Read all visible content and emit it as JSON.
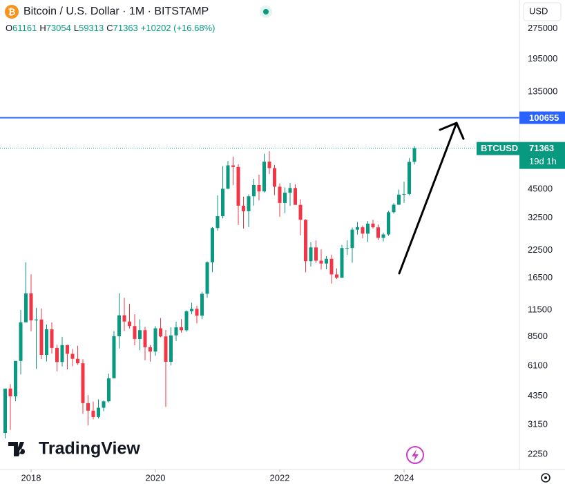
{
  "chart_data": {
    "type": "candlestick",
    "title": "Bitcoin / U.S. Dollar · 1M · BITSTAMP",
    "ohlc_prefixes": [
      "O",
      "H",
      "L",
      "C"
    ],
    "change_text": "+10202 (+16.68%)",
    "currency": "USD",
    "symbol": "BTCUSD",
    "countdown": "19d 1h",
    "brand": "TradingView",
    "log_scale": true,
    "grid": false,
    "up_color": "#089981",
    "down_color": "#f23645",
    "hline": {
      "value": 100655,
      "color": "#2962ff"
    },
    "ylim": [
      1900,
      380000
    ],
    "yticks": [
      275000,
      195000,
      135000,
      45000,
      32500,
      22500,
      16500,
      11500,
      8500,
      6100,
      4350,
      3150,
      2250
    ],
    "xticks": [
      {
        "value": "2018-01",
        "label": "2018"
      },
      {
        "value": "2020-01",
        "label": "2020"
      },
      {
        "value": "2022-01",
        "label": "2022"
      },
      {
        "value": "2024-01",
        "label": "2024"
      }
    ],
    "x": [
      "2017-08",
      "2017-09",
      "2017-10",
      "2017-11",
      "2017-12",
      "2018-01",
      "2018-02",
      "2018-03",
      "2018-04",
      "2018-05",
      "2018-06",
      "2018-07",
      "2018-08",
      "2018-09",
      "2018-10",
      "2018-11",
      "2018-12",
      "2019-01",
      "2019-02",
      "2019-03",
      "2019-04",
      "2019-05",
      "2019-06",
      "2019-07",
      "2019-08",
      "2019-09",
      "2019-10",
      "2019-11",
      "2019-12",
      "2020-01",
      "2020-02",
      "2020-03",
      "2020-04",
      "2020-05",
      "2020-06",
      "2020-07",
      "2020-08",
      "2020-09",
      "2020-10",
      "2020-11",
      "2020-12",
      "2021-01",
      "2021-02",
      "2021-03",
      "2021-04",
      "2021-05",
      "2021-06",
      "2021-07",
      "2021-08",
      "2021-09",
      "2021-10",
      "2021-11",
      "2021-12",
      "2022-01",
      "2022-02",
      "2022-03",
      "2022-04",
      "2022-05",
      "2022-06",
      "2022-07",
      "2022-08",
      "2022-09",
      "2022-10",
      "2022-11",
      "2022-12",
      "2023-01",
      "2023-02",
      "2023-03",
      "2023-04",
      "2023-05",
      "2023-06",
      "2023-07",
      "2023-08",
      "2023-09",
      "2023-10",
      "2023-11",
      "2023-12",
      "2024-01",
      "2024-02",
      "2024-03"
    ],
    "open": [
      2872,
      4735,
      4338,
      6468,
      10000,
      13860,
      10221,
      10326,
      6925,
      9240,
      7494,
      6391,
      7735,
      7011,
      6625,
      6300,
      4017,
      3689,
      3437,
      3815,
      4100,
      5320,
      8555,
      10830,
      10090,
      9590,
      8290,
      9150,
      7550,
      7190,
      9350,
      8530,
      6410,
      8630,
      9450,
      9140,
      11340,
      11650,
      10780,
      13800,
      19700,
      28990,
      33140,
      45160,
      58800,
      57750,
      37300,
      35040,
      41490,
      47100,
      43820,
      61300,
      57000,
      46200,
      38480,
      43190,
      45530,
      37640,
      31790,
      19940,
      23290,
      20050,
      19420,
      20490,
      17170,
      16540,
      23130,
      23140,
      28460,
      29240,
      27210,
      30470,
      29230,
      25940,
      26970,
      34660,
      37720,
      42260,
      42570,
      61161
    ],
    "high": [
      4736,
      4980,
      6470,
      11500,
      19666,
      17176,
      11780,
      11700,
      9760,
      9990,
      7760,
      8490,
      7760,
      7400,
      7680,
      6590,
      4400,
      4090,
      4190,
      4140,
      5600,
      9070,
      13880,
      13200,
      12330,
      10960,
      10350,
      9510,
      7750,
      9580,
      10500,
      9180,
      9460,
      10080,
      10380,
      11450,
      12480,
      12070,
      14100,
      19890,
      29300,
      41950,
      58330,
      61780,
      64900,
      59500,
      41300,
      42400,
      50500,
      52920,
      67000,
      69000,
      59100,
      47990,
      45800,
      48190,
      47450,
      40000,
      31990,
      24660,
      25200,
      22790,
      21100,
      21470,
      18400,
      23960,
      25250,
      29190,
      31000,
      29820,
      31390,
      31800,
      30200,
      27480,
      35200,
      38420,
      44700,
      48970,
      63900,
      73054
    ],
    "low": [
      2700,
      2972,
      4110,
      5555,
      10000,
      9035,
      5920,
      6600,
      6430,
      7035,
      5750,
      6070,
      5880,
      6100,
      6200,
      3560,
      3122,
      3350,
      3380,
      3670,
      4050,
      5320,
      7440,
      9070,
      9330,
      7720,
      7300,
      6520,
      6420,
      6860,
      8450,
      3850,
      6150,
      8100,
      8900,
      8990,
      10960,
      9880,
      10370,
      13200,
      17600,
      28130,
      32300,
      45000,
      47000,
      30000,
      28800,
      29300,
      37330,
      39600,
      43300,
      53300,
      42000,
      32950,
      34300,
      37200,
      37700,
      26700,
      17600,
      18780,
      19550,
      18150,
      18200,
      15480,
      16300,
      16500,
      21400,
      19570,
      26940,
      25810,
      24750,
      28860,
      25350,
      24900,
      26560,
      34100,
      37630,
      38500,
      41880,
      59313
    ],
    "close": [
      4735,
      4338,
      6468,
      10000,
      13860,
      10221,
      10326,
      6925,
      9240,
      7494,
      6391,
      7735,
      7011,
      6625,
      6300,
      4017,
      3689,
      3437,
      3815,
      4100,
      5320,
      8555,
      10830,
      10090,
      9590,
      8290,
      9150,
      7550,
      7190,
      9350,
      8530,
      6410,
      8630,
      9450,
      9140,
      11340,
      11650,
      10780,
      13800,
      19700,
      28990,
      33140,
      45160,
      58800,
      57750,
      37300,
      35040,
      41490,
      47100,
      43820,
      61300,
      57000,
      46200,
      38480,
      43190,
      45530,
      37640,
      31790,
      19940,
      23290,
      20050,
      19420,
      20490,
      17170,
      16540,
      23130,
      23140,
      28460,
      29240,
      27210,
      30470,
      29230,
      25940,
      26970,
      34660,
      37720,
      42260,
      42570,
      61160,
      71363
    ]
  }
}
